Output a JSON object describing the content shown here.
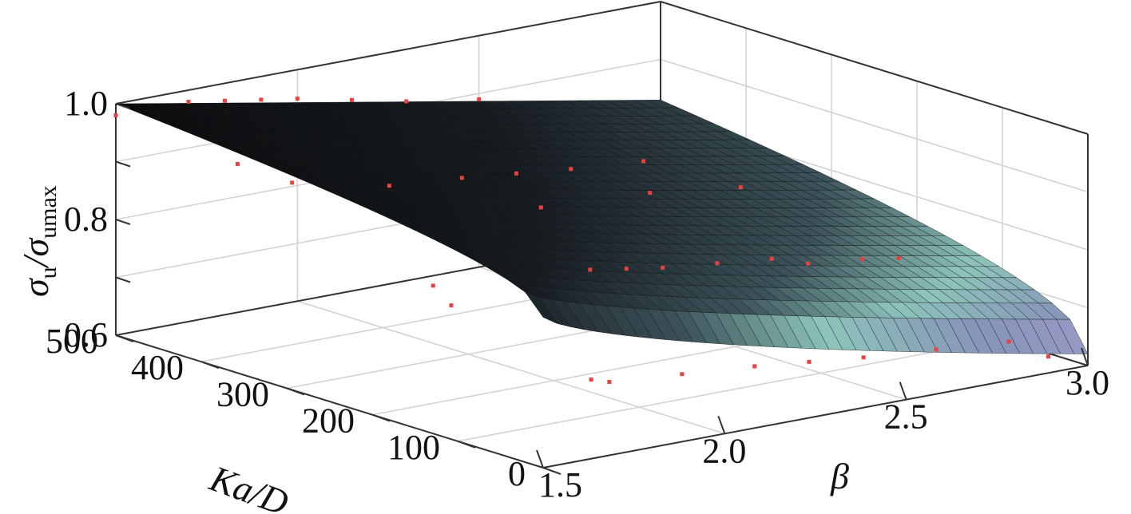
{
  "chart_data": {
    "type": "surface3d",
    "axes": {
      "x": {
        "label": "β",
        "range": [
          1.5,
          3.0
        ],
        "ticks": [
          "1.5",
          "2.0",
          "2.5",
          "3.0"
        ]
      },
      "y": {
        "label": "Ka/D",
        "range": [
          0,
          500
        ],
        "ticks": [
          "0",
          "100",
          "200",
          "300",
          "400",
          "500"
        ]
      },
      "z": {
        "label_main": "σ",
        "label_sub1": "u",
        "label_slash": "/",
        "label_sub2": "umax",
        "range": [
          0.6,
          1.0
        ],
        "ticks": [
          "0.6",
          "0.8",
          "1.0"
        ]
      }
    },
    "grid": true,
    "surface": {
      "description_points": [
        {
          "beta": 1.5,
          "ka_d": 500,
          "value": 1.0
        },
        {
          "beta": 3.0,
          "ka_d": 500,
          "value": 0.83
        },
        {
          "beta": 1.5,
          "ka_d": 0,
          "value": 0.86
        },
        {
          "beta": 3.0,
          "ka_d": 0,
          "value": 0.62
        }
      ]
    },
    "scatter": {
      "color": "#e8413f",
      "points": [
        {
          "beta": 1.5,
          "ka_d": 500,
          "value": 0.98
        },
        {
          "beta": 1.7,
          "ka_d": 500,
          "value": 0.98
        },
        {
          "beta": 1.8,
          "ka_d": 500,
          "value": 0.97
        },
        {
          "beta": 1.9,
          "ka_d": 500,
          "value": 0.96
        },
        {
          "beta": 2.0,
          "ka_d": 500,
          "value": 0.95
        },
        {
          "beta": 2.15,
          "ka_d": 500,
          "value": 0.93
        },
        {
          "beta": 2.3,
          "ka_d": 500,
          "value": 0.91
        },
        {
          "beta": 2.5,
          "ka_d": 500,
          "value": 0.89
        },
        {
          "beta": 1.6,
          "ka_d": 400,
          "value": 0.93
        },
        {
          "beta": 1.75,
          "ka_d": 400,
          "value": 0.88
        },
        {
          "beta": 1.9,
          "ka_d": 350,
          "value": 0.88
        },
        {
          "beta": 2.1,
          "ka_d": 350,
          "value": 0.87
        },
        {
          "beta": 2.25,
          "ka_d": 350,
          "value": 0.86
        },
        {
          "beta": 2.4,
          "ka_d": 350,
          "value": 0.85
        },
        {
          "beta": 2.6,
          "ka_d": 350,
          "value": 0.84
        },
        {
          "beta": 2.2,
          "ka_d": 300,
          "value": 0.83
        },
        {
          "beta": 2.5,
          "ka_d": 300,
          "value": 0.82
        },
        {
          "beta": 2.75,
          "ka_d": 300,
          "value": 0.8
        },
        {
          "beta": 1.55,
          "ka_d": 150,
          "value": 0.84
        },
        {
          "beta": 1.6,
          "ka_d": 150,
          "value": 0.8
        },
        {
          "beta": 2.1,
          "ka_d": 200,
          "value": 0.78
        },
        {
          "beta": 2.2,
          "ka_d": 200,
          "value": 0.77
        },
        {
          "beta": 2.3,
          "ka_d": 200,
          "value": 0.76
        },
        {
          "beta": 2.45,
          "ka_d": 200,
          "value": 0.75
        },
        {
          "beta": 2.6,
          "ka_d": 200,
          "value": 0.74
        },
        {
          "beta": 2.7,
          "ka_d": 200,
          "value": 0.72
        },
        {
          "beta": 2.85,
          "ka_d": 200,
          "value": 0.71
        },
        {
          "beta": 2.95,
          "ka_d": 200,
          "value": 0.7
        },
        {
          "beta": 1.75,
          "ka_d": 50,
          "value": 0.7
        },
        {
          "beta": 1.8,
          "ka_d": 50,
          "value": 0.69
        },
        {
          "beta": 2.0,
          "ka_d": 50,
          "value": 0.68
        },
        {
          "beta": 2.2,
          "ka_d": 50,
          "value": 0.67
        },
        {
          "beta": 2.35,
          "ka_d": 50,
          "value": 0.66
        },
        {
          "beta": 2.5,
          "ka_d": 50,
          "value": 0.65
        },
        {
          "beta": 2.7,
          "ka_d": 50,
          "value": 0.64
        },
        {
          "beta": 2.9,
          "ka_d": 50,
          "value": 0.63
        },
        {
          "beta": 2.95,
          "ka_d": 25,
          "value": 0.61
        }
      ]
    }
  }
}
